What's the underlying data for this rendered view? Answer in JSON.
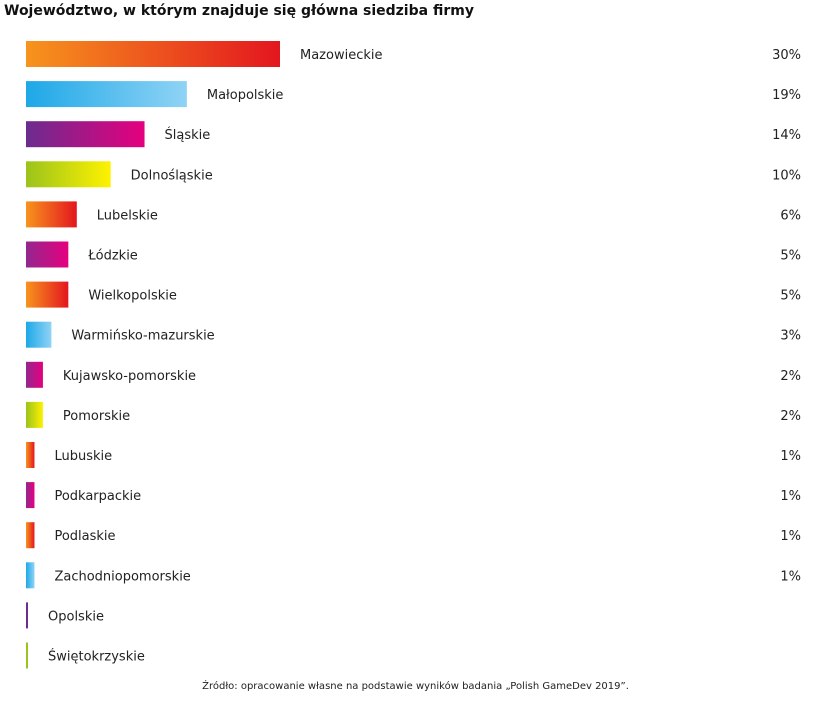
{
  "chart_data": {
    "type": "bar",
    "orientation": "horizontal",
    "title": "Województwo, w którym znajduje się główna siedziba firmy",
    "categories": [
      "Mazowieckie",
      "Małopolskie",
      "Śląskie",
      "Dolnośląskie",
      "Lubelskie",
      "Łódzkie",
      "Wielkopolskie",
      "Warmińsko-mazurskie",
      "Kujawsko-pomorskie",
      "Pomorskie",
      "Lubuskie",
      "Podkarpackie",
      "Podlaskie",
      "Zachodniopomorskie",
      "Opolskie",
      "Świętokrzyskie"
    ],
    "values": [
      30,
      19,
      14,
      10,
      6,
      5,
      5,
      3,
      2,
      2,
      1,
      1,
      1,
      1,
      0,
      0
    ],
    "value_labels": [
      "30%",
      "19%",
      "14%",
      "10%",
      "6%",
      "5%",
      "5%",
      "3%",
      "2%",
      "2%",
      "1%",
      "1%",
      "1%",
      "1%",
      "",
      ""
    ],
    "gradients": [
      [
        "#f7941d",
        "#e3161f"
      ],
      [
        "#1ea8e7",
        "#8fd3f5"
      ],
      [
        "#6b2c8e",
        "#e5007e"
      ],
      [
        "#9bc31c",
        "#fff200"
      ],
      [
        "#f7941d",
        "#e3161f"
      ],
      [
        "#93278f",
        "#e5007e"
      ],
      [
        "#f7941d",
        "#e3161f"
      ],
      [
        "#1ea8e7",
        "#8fd3f5"
      ],
      [
        "#93278f",
        "#e5007e"
      ],
      [
        "#9bc31c",
        "#fff200"
      ],
      [
        "#f7941d",
        "#e3161f"
      ],
      [
        "#93278f",
        "#e5007e"
      ],
      [
        "#f7941d",
        "#e3161f"
      ],
      [
        "#1ea8e7",
        "#8fd3f5"
      ],
      [
        "#6b2c8e",
        "#6b2c8e"
      ],
      [
        "#9bc31c",
        "#9bc31c"
      ]
    ],
    "xlim": [
      0,
      30
    ],
    "grid": false,
    "legend": "none"
  },
  "source": "Źródło: opracowanie własne na podstawie wyników badania „Polish GameDev 2019”."
}
